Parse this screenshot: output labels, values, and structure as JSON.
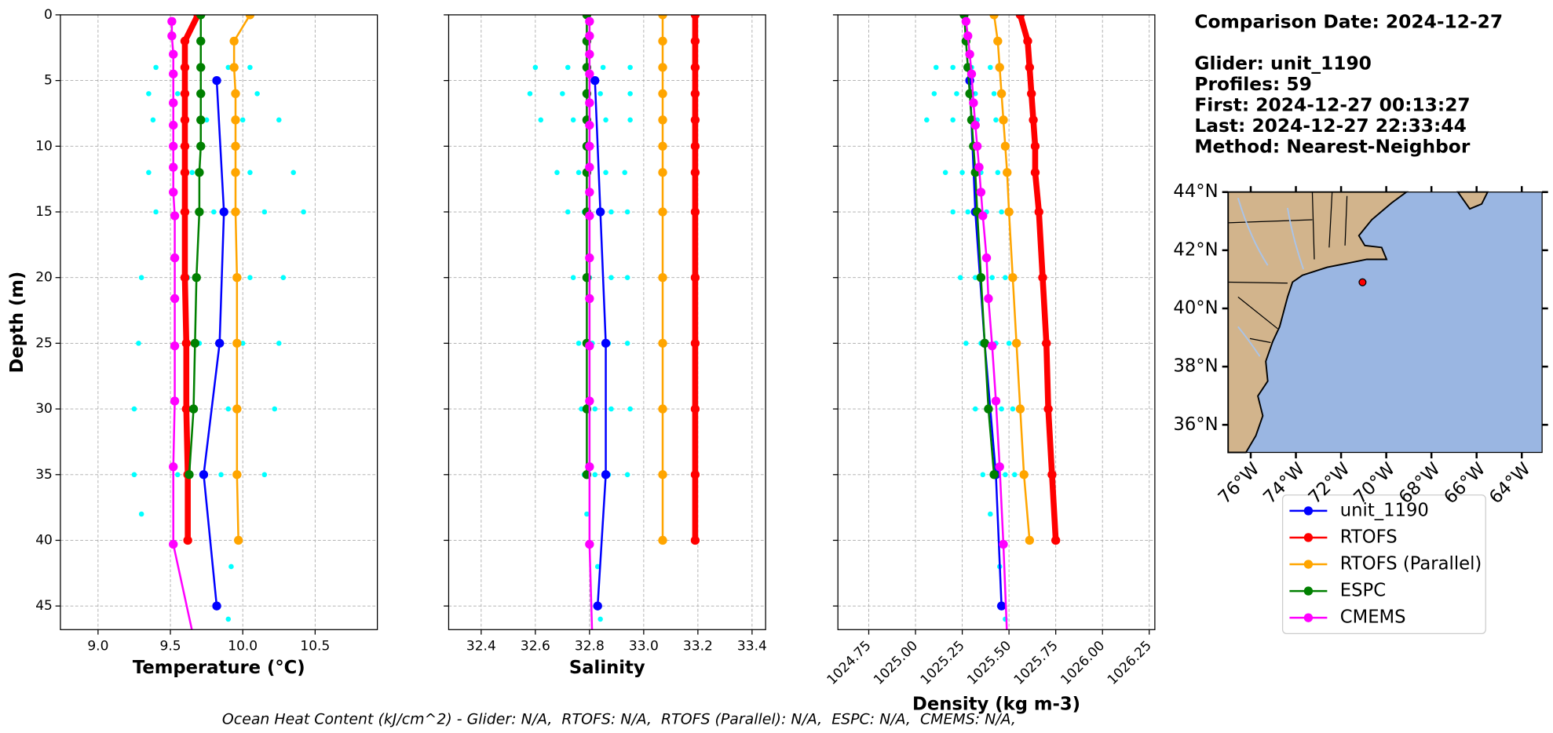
{
  "chart_data": [
    {
      "type": "profile",
      "ylabel": "Depth (m)",
      "ylim": [
        0,
        46.8
      ],
      "y_inverted": true,
      "yticks": [
        0,
        5,
        10,
        15,
        20,
        25,
        30,
        35,
        40,
        45
      ],
      "grid": true,
      "panels": [
        {
          "field": "temperature",
          "xlabel": "Temperature (°C)",
          "xlim": [
            8.74,
            10.93
          ],
          "xticks": [
            {
              "value": 9,
              "label": "9.0"
            },
            9.5,
            {
              "value": 10,
              "label": "10.0"
            },
            10.5
          ]
        },
        {
          "field": "salinity",
          "xlabel": "Salinity",
          "xlim": [
            32.28,
            33.45
          ],
          "xticks": [
            32.4,
            32.6,
            32.8,
            {
              "value": 33,
              "label": "33.0"
            },
            33.2,
            33.4
          ]
        },
        {
          "field": "density",
          "xlabel": "Density (kg m-3)",
          "xlim": [
            1024.585,
            1026.28
          ],
          "xticks": [
            1024.75,
            {
              "value": 1025,
              "label": "1025.00"
            },
            1025.25,
            {
              "value": 1025.5,
              "label": "1025.50"
            },
            1025.75,
            {
              "value": 1026,
              "label": "1026.00"
            },
            1026.25
          ],
          "rotate_ticks": true
        }
      ],
      "glider_points": {
        "color": "#00ffff",
        "depth": [
          4,
          4,
          4,
          4,
          6,
          6,
          6,
          6,
          8,
          8,
          8,
          8,
          12,
          12,
          12,
          12,
          15,
          15,
          15,
          15,
          20,
          20,
          20,
          20,
          25,
          25,
          25,
          25,
          30,
          30,
          30,
          30,
          35,
          35,
          35,
          35,
          38,
          42,
          46
        ],
        "temperature": [
          9.4,
          9.6,
          9.9,
          10.05,
          9.35,
          9.55,
          9.95,
          10.1,
          9.38,
          9.75,
          10.0,
          10.25,
          9.35,
          9.65,
          10.05,
          10.35,
          9.4,
          9.8,
          10.15,
          10.42,
          9.3,
          9.62,
          10.05,
          10.28,
          9.28,
          9.7,
          10.0,
          10.25,
          9.25,
          9.6,
          9.9,
          10.22,
          9.25,
          9.55,
          9.85,
          10.15,
          9.3,
          9.92,
          9.9
        ],
        "salinity": [
          32.6,
          32.72,
          32.85,
          32.95,
          32.58,
          32.7,
          32.84,
          32.95,
          32.62,
          32.74,
          32.86,
          32.95,
          32.68,
          32.76,
          32.86,
          32.93,
          32.72,
          32.78,
          32.88,
          32.94,
          32.74,
          32.8,
          32.88,
          32.94,
          32.76,
          32.81,
          32.87,
          32.94,
          32.77,
          32.82,
          32.88,
          32.95,
          32.78,
          32.82,
          32.87,
          32.94,
          32.79,
          32.83,
          32.84
        ],
        "density": [
          1025.11,
          1025.2,
          1025.3,
          1025.4,
          1025.1,
          1025.22,
          1025.32,
          1025.42,
          1025.06,
          1025.2,
          1025.33,
          1025.43,
          1025.16,
          1025.25,
          1025.35,
          1025.44,
          1025.2,
          1025.28,
          1025.38,
          1025.46,
          1025.24,
          1025.32,
          1025.41,
          1025.48,
          1025.27,
          1025.35,
          1025.43,
          1025.5,
          1025.32,
          1025.38,
          1025.46,
          1025.52,
          1025.36,
          1025.41,
          1025.48,
          1025.53,
          1025.4,
          1025.45,
          1025.48
        ]
      },
      "series": [
        {
          "name": "unit_1190",
          "color": "#0000ff",
          "line_width": 2,
          "depth": [
            5,
            15,
            25,
            35,
            45
          ],
          "temperature": [
            9.82,
            9.87,
            9.84,
            9.73,
            9.82
          ],
          "salinity": [
            32.82,
            32.84,
            32.86,
            32.86,
            32.83
          ],
          "density": [
            1025.29,
            1025.32,
            1025.37,
            1025.43,
            1025.46
          ]
        },
        {
          "name": "RTOFS",
          "color": "#ff0000",
          "line_width": 6,
          "depth": [
            0,
            2,
            4,
            6,
            8,
            10,
            12,
            15,
            20,
            25,
            30,
            35,
            40
          ],
          "temperature": [
            9.69,
            9.6,
            9.6,
            9.6,
            9.6,
            9.6,
            9.6,
            9.6,
            9.6,
            9.61,
            9.61,
            9.62,
            9.62
          ],
          "salinity": [
            33.19,
            33.19,
            33.19,
            33.19,
            33.19,
            33.19,
            33.19,
            33.19,
            33.19,
            33.19,
            33.19,
            33.19,
            33.19
          ],
          "density": [
            1025.56,
            1025.6,
            1025.61,
            1025.62,
            1025.63,
            1025.64,
            1025.64,
            1025.66,
            1025.68,
            1025.7,
            1025.71,
            1025.73,
            1025.75
          ]
        },
        {
          "name": "RTOFS (Parallel)",
          "color": "#ffa500",
          "line_width": 2,
          "depth": [
            0,
            2,
            4,
            6,
            8,
            10,
            12,
            15,
            20,
            25,
            30,
            35,
            40
          ],
          "temperature": [
            10.05,
            9.94,
            9.94,
            9.95,
            9.95,
            9.95,
            9.95,
            9.95,
            9.96,
            9.96,
            9.96,
            9.96,
            9.97
          ],
          "salinity": [
            33.07,
            33.07,
            33.07,
            33.07,
            33.07,
            33.07,
            33.07,
            33.07,
            33.07,
            33.07,
            33.07,
            33.07,
            33.07
          ],
          "density": [
            1025.42,
            1025.44,
            1025.45,
            1025.46,
            1025.47,
            1025.48,
            1025.49,
            1025.5,
            1025.52,
            1025.54,
            1025.56,
            1025.58,
            1025.61
          ]
        },
        {
          "name": "ESPC",
          "color": "#008000",
          "line_width": 2,
          "depth": [
            0,
            2,
            4,
            6,
            8,
            10,
            12,
            15,
            20,
            25,
            30,
            35
          ],
          "temperature": [
            9.71,
            9.71,
            9.71,
            9.71,
            9.71,
            9.71,
            9.7,
            9.7,
            9.68,
            9.67,
            9.66,
            9.63
          ],
          "salinity": [
            32.79,
            32.79,
            32.79,
            32.79,
            32.79,
            32.79,
            32.79,
            32.79,
            32.79,
            32.79,
            32.79,
            32.79
          ],
          "density": [
            1025.26,
            1025.27,
            1025.28,
            1025.29,
            1025.3,
            1025.31,
            1025.32,
            1025.33,
            1025.35,
            1025.37,
            1025.39,
            1025.42
          ]
        },
        {
          "name": "CMEMS",
          "color": "#ff00ff",
          "line_width": 2,
          "depth": [
            0.5,
            1.6,
            3,
            4.5,
            6.7,
            8.4,
            10,
            11.6,
            13.5,
            15.3,
            18.5,
            21.6,
            25.2,
            29.4,
            34.4,
            40.3,
            47.4
          ],
          "temperature": [
            9.51,
            9.51,
            9.52,
            9.52,
            9.52,
            9.52,
            9.52,
            9.52,
            9.52,
            9.53,
            9.53,
            9.53,
            9.53,
            9.53,
            9.52,
            9.52,
            9.66
          ],
          "salinity": [
            32.8,
            32.8,
            32.8,
            32.8,
            32.8,
            32.8,
            32.8,
            32.8,
            32.8,
            32.8,
            32.8,
            32.8,
            32.8,
            32.8,
            32.8,
            32.8,
            32.81
          ],
          "density": [
            1025.27,
            1025.28,
            1025.29,
            1025.3,
            1025.31,
            1025.32,
            1025.33,
            1025.34,
            1025.35,
            1025.36,
            1025.38,
            1025.39,
            1025.41,
            1025.43,
            1025.45,
            1025.47,
            1025.49
          ]
        }
      ]
    },
    {
      "type": "map",
      "xlim": [
        -77,
        -63.1
      ],
      "ylim": [
        35.05,
        44
      ],
      "xticks": [
        {
          "value": -76,
          "label": "76°W"
        },
        {
          "value": -74,
          "label": "74°W"
        },
        {
          "value": -72,
          "label": "72°W"
        },
        {
          "value": -70,
          "label": "70°W"
        },
        {
          "value": -68,
          "label": "68°W"
        },
        {
          "value": -66,
          "label": "66°W"
        },
        {
          "value": -64,
          "label": "64°W"
        }
      ],
      "yticks": [
        {
          "value": 36,
          "label": "36°N"
        },
        {
          "value": 38,
          "label": "38°N"
        },
        {
          "value": 40,
          "label": "40°N"
        },
        {
          "value": 42,
          "label": "42°N"
        },
        {
          "value": 44,
          "label": "44°N"
        }
      ],
      "points": {
        "lon": [
          -71.05
        ],
        "lat": [
          40.9
        ],
        "color": "#ff0000"
      }
    }
  ],
  "info": [
    "Comparison Date: 2024-12-27",
    "Glider: unit_1190",
    "Profiles: 59",
    "First: 2024-12-27 00:13:27",
    "Last: 2024-12-27 22:33:44",
    "Method: Nearest-Neighbor"
  ],
  "footer": "Ocean Heat Content (kJ/cm^2) - Glider: N/A,  RTOFS: N/A,  RTOFS (Parallel): N/A,  ESPC: N/A,  CMEMS: N/A,"
}
